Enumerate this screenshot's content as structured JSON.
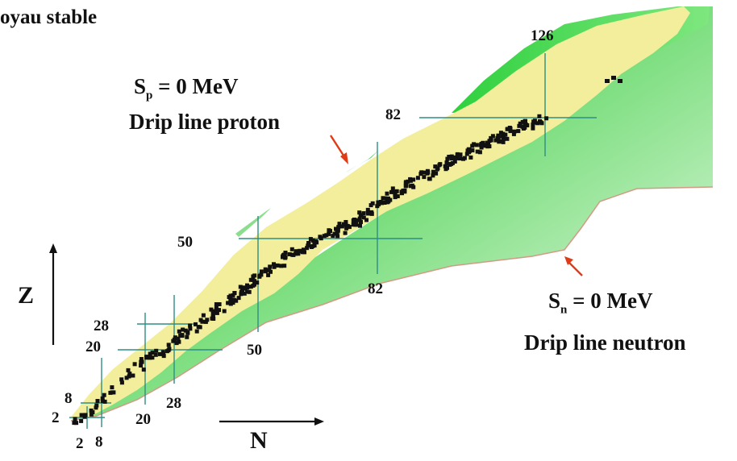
{
  "legend": {
    "stable_nucleus": "oyau stable"
  },
  "proton_drip": {
    "equation_prefix": "S",
    "equation_sub": "p",
    "equation_suffix": "= 0 MeV",
    "caption": "Drip line proton"
  },
  "neutron_drip": {
    "equation_prefix": "S",
    "equation_sub": "n",
    "equation_suffix": "= 0 MeV",
    "caption": "Drip line neutron"
  },
  "axes": {
    "z_label": "Z",
    "n_label": "N"
  },
  "magic_z": [
    "2",
    "8",
    "20",
    "28",
    "50",
    "82"
  ],
  "magic_n": [
    "2",
    "8",
    "20",
    "28",
    "50",
    "82",
    "126"
  ],
  "colors": {
    "valley": "#f2ee9c",
    "neutron_rich": "#3cc84a",
    "neutron_rich_light": "#eefaee",
    "stable": "#111111",
    "magic_lines": "#2e8e86",
    "arrows": "#e03a16"
  }
}
